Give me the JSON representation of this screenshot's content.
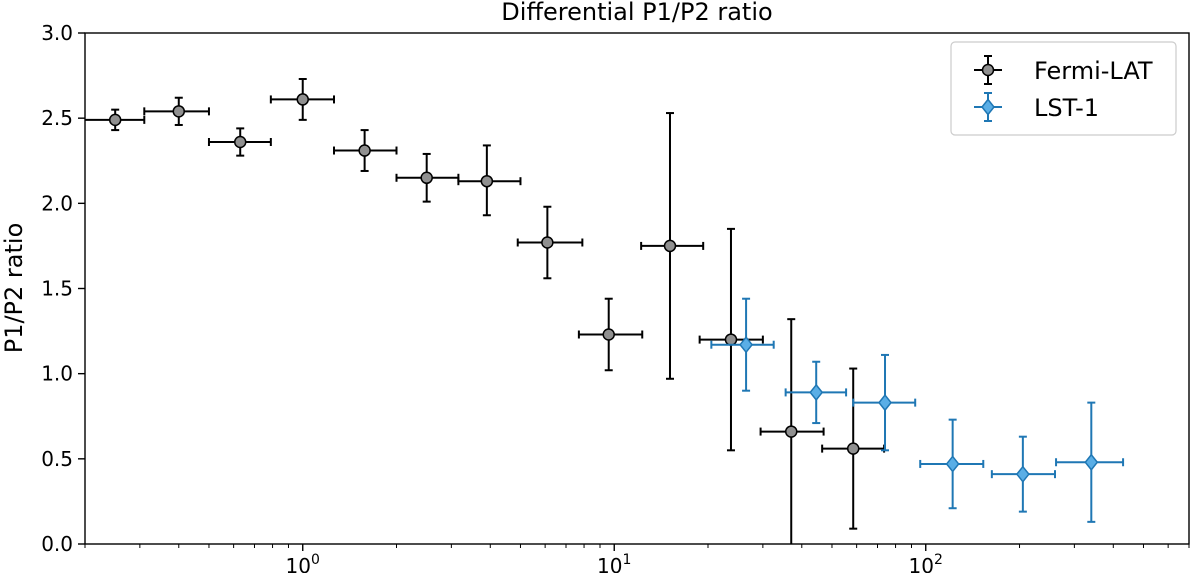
{
  "chart_data": {
    "type": "scatter",
    "title": "Differential P1/P2 ratio",
    "xlabel": "",
    "ylabel": "P1/P2 ratio",
    "xscale": "log",
    "xlim": [
      0.2,
      700
    ],
    "ylim": [
      0.0,
      3.0
    ],
    "yticks": [
      0.0,
      0.5,
      1.0,
      1.5,
      2.0,
      2.5,
      3.0
    ],
    "ytick_labels": [
      "0.0",
      "0.5",
      "1.0",
      "1.5",
      "2.0",
      "2.5",
      "3.0"
    ],
    "xticks": [
      {
        "value": 1,
        "base": "10",
        "exp": "0"
      },
      {
        "value": 10,
        "base": "10",
        "exp": "1"
      },
      {
        "value": 100,
        "base": "10",
        "exp": "2"
      }
    ],
    "legend_position": "top-right",
    "series": [
      {
        "name": "Fermi-LAT",
        "marker": "circle",
        "color": "#000000",
        "fill": "#909090",
        "points": [
          {
            "x": 0.25,
            "x_low": 0.2,
            "x_high": 0.31,
            "y": 2.49,
            "y_err_low": 0.06,
            "y_err_high": 0.06
          },
          {
            "x": 0.4,
            "x_low": 0.31,
            "x_high": 0.5,
            "y": 2.54,
            "y_err_low": 0.08,
            "y_err_high": 0.08
          },
          {
            "x": 0.63,
            "x_low": 0.5,
            "x_high": 0.79,
            "y": 2.36,
            "y_err_low": 0.08,
            "y_err_high": 0.08
          },
          {
            "x": 1.0,
            "x_low": 0.79,
            "x_high": 1.26,
            "y": 2.61,
            "y_err_low": 0.12,
            "y_err_high": 0.12
          },
          {
            "x": 1.58,
            "x_low": 1.26,
            "x_high": 2.0,
            "y": 2.31,
            "y_err_low": 0.12,
            "y_err_high": 0.12
          },
          {
            "x": 2.5,
            "x_low": 2.0,
            "x_high": 3.16,
            "y": 2.15,
            "y_err_low": 0.14,
            "y_err_high": 0.14
          },
          {
            "x": 3.9,
            "x_low": 3.16,
            "x_high": 5.0,
            "y": 2.13,
            "y_err_low": 0.2,
            "y_err_high": 0.21
          },
          {
            "x": 6.1,
            "x_low": 4.9,
            "x_high": 7.9,
            "y": 1.77,
            "y_err_low": 0.21,
            "y_err_high": 0.21
          },
          {
            "x": 9.6,
            "x_low": 7.7,
            "x_high": 12.3,
            "y": 1.23,
            "y_err_low": 0.21,
            "y_err_high": 0.21
          },
          {
            "x": 15.1,
            "x_low": 12.2,
            "x_high": 19.3,
            "y": 1.75,
            "y_err_low": 0.78,
            "y_err_high": 0.78
          },
          {
            "x": 23.7,
            "x_low": 18.8,
            "x_high": 30.0,
            "y": 1.2,
            "y_err_low": 0.65,
            "y_err_high": 0.65
          },
          {
            "x": 37.0,
            "x_low": 29.5,
            "x_high": 47.0,
            "y": 0.66,
            "y_err_low": 0.66,
            "y_err_high": 0.66
          },
          {
            "x": 58.5,
            "x_low": 46.5,
            "x_high": 73.5,
            "y": 0.56,
            "y_err_low": 0.47,
            "y_err_high": 0.47
          }
        ]
      },
      {
        "name": "LST-1",
        "marker": "diamond",
        "color": "#1f77b4",
        "fill": "#5aaee6",
        "points": [
          {
            "x": 26.5,
            "x_low": 20.5,
            "x_high": 32.5,
            "y": 1.17,
            "y_err_low": 0.27,
            "y_err_high": 0.27
          },
          {
            "x": 44.5,
            "x_low": 35.5,
            "x_high": 55.5,
            "y": 0.89,
            "y_err_low": 0.18,
            "y_err_high": 0.18
          },
          {
            "x": 74.0,
            "x_low": 58.5,
            "x_high": 92.5,
            "y": 0.83,
            "y_err_low": 0.28,
            "y_err_high": 0.28
          },
          {
            "x": 122.0,
            "x_low": 96.0,
            "x_high": 153.0,
            "y": 0.47,
            "y_err_low": 0.26,
            "y_err_high": 0.26
          },
          {
            "x": 205.0,
            "x_low": 163.0,
            "x_high": 260.0,
            "y": 0.41,
            "y_err_low": 0.22,
            "y_err_high": 0.22
          },
          {
            "x": 340.0,
            "x_low": 262.0,
            "x_high": 430.0,
            "y": 0.48,
            "y_err_low": 0.35,
            "y_err_high": 0.35
          }
        ]
      }
    ]
  }
}
